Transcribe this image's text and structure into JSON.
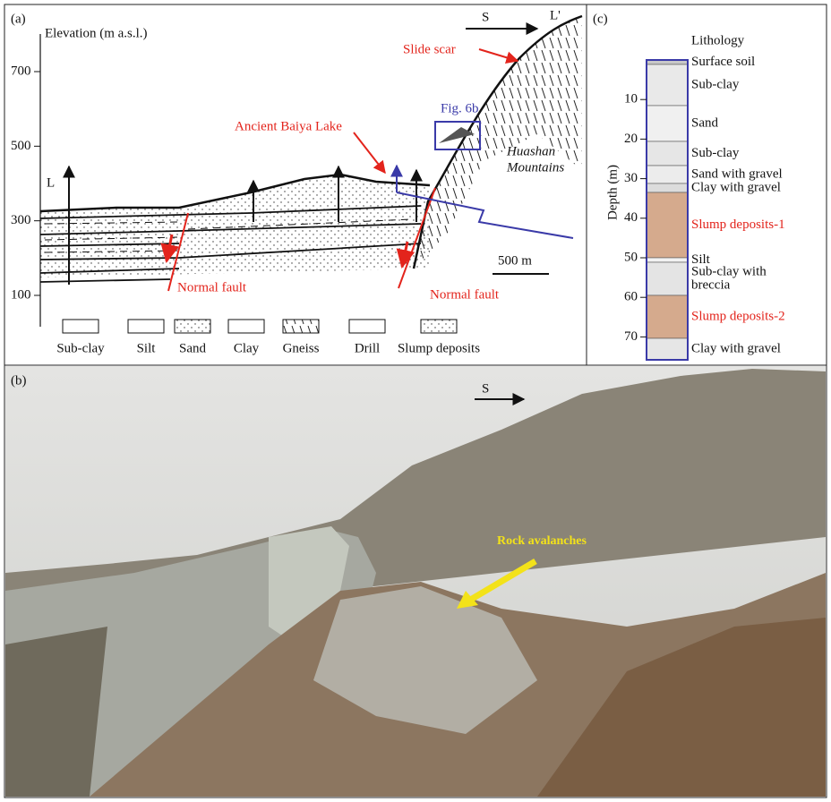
{
  "panel_a": {
    "label": "(a)",
    "y_axis_title": "Elevation (m a.s.l.)",
    "y_ticks": [
      700,
      500,
      300,
      100
    ],
    "direction": "S",
    "profile_start": "L",
    "profile_end": "L'",
    "annotations": {
      "slide_scar": "Slide scar",
      "fig_ref": "Fig. 6b",
      "lake": "Ancient Baiya Lake",
      "mountains": [
        "Huashan",
        "Mountains"
      ],
      "scale": "500 m",
      "fault_left": "Normal fault",
      "fault_right": "Normal fault"
    },
    "legend": [
      "Sub-clay",
      "Silt",
      "Sand",
      "Clay",
      "Gneiss",
      "Drill",
      "Slump deposits"
    ]
  },
  "panel_b": {
    "label": "(b)",
    "direction": "S",
    "annotation": "Rock avalanches"
  },
  "panel_c": {
    "label": "(c)",
    "column_title": "Lithology",
    "y_axis_title": "Depth (m)",
    "depth_ticks": [
      10,
      20,
      30,
      40,
      50,
      60,
      70
    ],
    "layers": [
      {
        "lines": [
          "Surface soil"
        ]
      },
      {
        "lines": [
          "Sub-clay"
        ]
      },
      {
        "lines": [
          "Sand"
        ]
      },
      {
        "lines": [
          "Sub-clay"
        ]
      },
      {
        "lines": [
          "Sand with gravel"
        ]
      },
      {
        "lines": [
          "Clay with gravel"
        ]
      },
      {
        "lines": [
          "Slump deposits-1"
        ],
        "color": "#e3241c"
      },
      {
        "lines": [
          "Silt"
        ]
      },
      {
        "lines": [
          "Sub-clay with",
          "breccia"
        ]
      },
      {
        "lines": [
          "Slump deposits-2"
        ],
        "color": "#e3241c"
      },
      {
        "lines": [
          "Clay with gravel"
        ]
      }
    ]
  }
}
